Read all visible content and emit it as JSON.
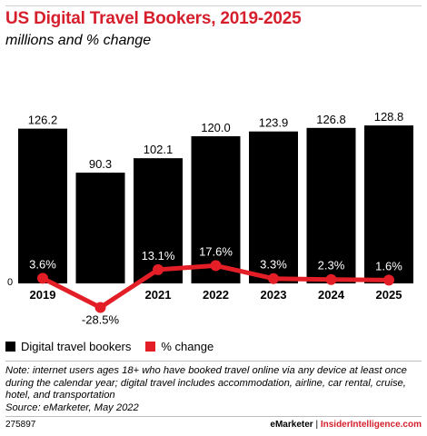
{
  "header": {
    "title": "US Digital Travel Bookers, 2019-2025",
    "subtitle": "millions and % change"
  },
  "chart_data": {
    "type": "bar",
    "categories": [
      "2019",
      "2020",
      "2021",
      "2022",
      "2023",
      "2024",
      "2025"
    ],
    "series": [
      {
        "name": "Digital travel bookers",
        "type": "bar",
        "color": "#000000",
        "values": [
          126.2,
          90.3,
          102.1,
          120.0,
          123.9,
          126.8,
          128.8
        ],
        "labels": [
          "126.2",
          "90.3",
          "102.1",
          "120.0",
          "123.9",
          "126.8",
          "128.8"
        ]
      },
      {
        "name": "% change",
        "type": "line",
        "color": "#e31e26",
        "values": [
          3.6,
          -28.5,
          13.1,
          17.6,
          3.3,
          2.3,
          1.6
        ],
        "labels": [
          "3.6%",
          "-28.5%",
          "13.1%",
          "17.6%",
          "3.3%",
          "2.3%",
          "1.6%"
        ]
      }
    ],
    "zero_label": "0",
    "grid": false,
    "legend_position": "bottom-left"
  },
  "legend": {
    "items": [
      {
        "label": "Digital travel bookers",
        "color": "#000000"
      },
      {
        "label": "% change",
        "color": "#e31e26"
      }
    ]
  },
  "note": {
    "text": "Note: internet users ages 18+ who have booked travel online via any device at least once during the calendar year; digital travel includes accommodation, airline, car rental, cruise, hotel, and transportation",
    "source": "Source: eMarketer, May 2022"
  },
  "footer": {
    "chart_id": "275897",
    "brand_left": "eMarketer",
    "separator": "|",
    "brand_right": "InsiderIntelligence.com"
  }
}
